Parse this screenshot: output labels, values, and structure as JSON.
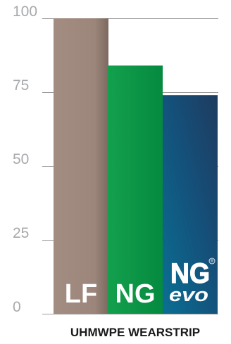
{
  "chart_data": {
    "type": "bar",
    "categories": [
      "LF",
      "NG",
      "NG evo"
    ],
    "values": [
      100,
      84,
      74
    ],
    "xlabel": "UHMWPE WEARSTRIP",
    "ylabel": "",
    "ylim": [
      0,
      100
    ],
    "yticks": [
      "0",
      "25",
      "50",
      "75",
      "100"
    ],
    "grid": true,
    "bar_labels": [
      "LF",
      "NG",
      ""
    ],
    "logo": {
      "top": "NG",
      "bottom": "evo",
      "mark": "®"
    },
    "colors": {
      "LF": [
        "#a58f84",
        "#8a766c"
      ],
      "NG": [
        "#17a350",
        "#008b3f"
      ],
      "NG evo": [
        "#0a6b8d",
        "#1e3e62"
      ],
      "grid": "#9b9b9b",
      "tick": "#a7a9ac"
    }
  }
}
